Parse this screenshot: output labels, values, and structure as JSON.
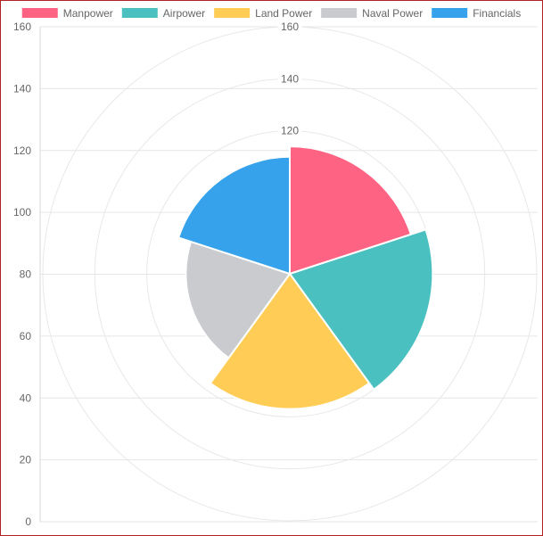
{
  "chart_data": {
    "type": "polarArea",
    "categories": [
      "Manpower",
      "Airpower",
      "Land Power",
      "Naval Power",
      "Financials"
    ],
    "values": [
      114,
      120,
      117,
      105,
      110
    ],
    "colors": [
      "#ff6384",
      "#4bc0c0",
      "#ffcd56",
      "#c9cbcf",
      "#36a2eb"
    ],
    "legend_position": "top",
    "y_axis": {
      "min": 0,
      "max": 160,
      "ticks": [
        "0",
        "20",
        "40",
        "60",
        "80",
        "100",
        "120",
        "140",
        "160"
      ]
    },
    "radial_axis": {
      "min": 65,
      "max": 160,
      "ticks": [
        "120",
        "140",
        "160"
      ],
      "rings": [
        100,
        120,
        140,
        160
      ]
    },
    "grid": true
  }
}
